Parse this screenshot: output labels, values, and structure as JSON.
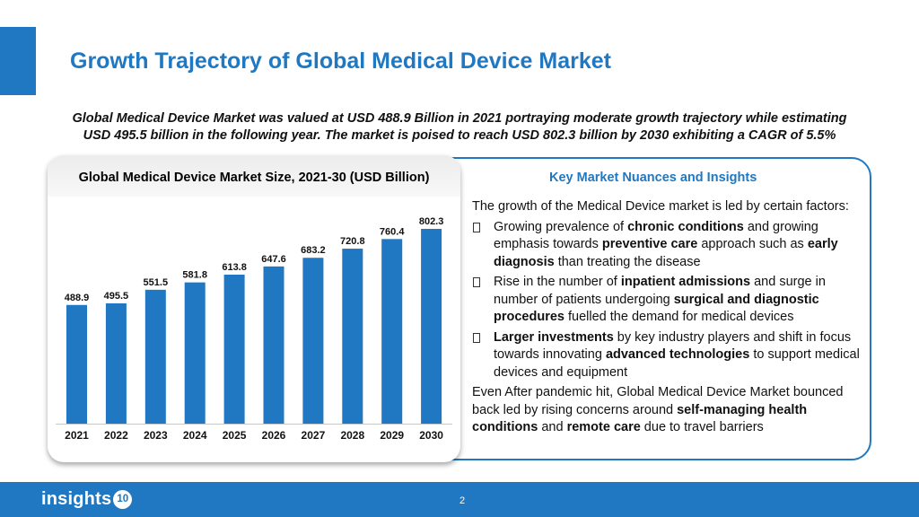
{
  "slide": {
    "title": "Growth Trajectory of Global Medical Device Market",
    "subtitle_line1": "Global Medical Device Market was valued at USD 488.9 Billion in 2021 portraying moderate growth trajectory while estimating",
    "subtitle_line2": "USD 495.5 billion in the following year. The market is poised to reach USD 802.3 billion by 2030 exhibiting a CAGR of 5.5%",
    "page_number": "2",
    "accent_color": "#1f78c1"
  },
  "chart_data": {
    "type": "bar",
    "title": "Global Medical Device Market Size, 2021-30 (USD Billion)",
    "categories": [
      "2021",
      "2022",
      "2023",
      "2024",
      "2025",
      "2026",
      "2027",
      "2028",
      "2029",
      "2030"
    ],
    "values": [
      488.9,
      495.5,
      551.5,
      581.8,
      613.8,
      647.6,
      683.2,
      720.8,
      760.4,
      802.3
    ],
    "value_labels": [
      "488.9",
      "495.5",
      "551.5",
      "581.8",
      "613.8",
      "647.6",
      "683.2",
      "720.8",
      "760.4",
      "802.3"
    ],
    "bar_color": "#1f78c1",
    "xlabel": "",
    "ylabel": "",
    "ylim": [
      0,
      802.3
    ],
    "grid": false,
    "legend": "none"
  },
  "insights": {
    "heading": "Key Market Nuances and Insights",
    "intro": "The growth of the Medical Device market is led by certain factors:",
    "bullets": [
      {
        "icon": "square-bullet-icon",
        "parts": [
          {
            "t": "Growing prevalence of ",
            "b": false
          },
          {
            "t": "chronic conditions",
            "b": true
          },
          {
            "t": " and growing emphasis towards ",
            "b": false
          },
          {
            "t": "preventive care",
            "b": true
          },
          {
            "t": " approach such as ",
            "b": false
          },
          {
            "t": "early diagnosis",
            "b": true
          },
          {
            "t": " than treating the disease",
            "b": false
          }
        ]
      },
      {
        "icon": "square-bullet-icon",
        "parts": [
          {
            "t": "Rise in the number of ",
            "b": false
          },
          {
            "t": "inpatient admissions",
            "b": true
          },
          {
            "t": " and surge in number of patients undergoing ",
            "b": false
          },
          {
            "t": "surgical and diagnostic procedures",
            "b": true
          },
          {
            "t": " fuelled the demand for medical devices",
            "b": false
          }
        ]
      },
      {
        "icon": "square-bullet-icon",
        "parts": [
          {
            "t": "Larger investments",
            "b": true
          },
          {
            "t": " by key industry players and shift in focus towards innovating ",
            "b": false
          },
          {
            "t": "advanced technologies",
            "b": true
          },
          {
            "t": " to support medical devices and equipment",
            "b": false
          }
        ]
      }
    ],
    "outro": [
      {
        "t": "Even After pandemic hit, Global Medical Device Market bounced back led by rising concerns around ",
        "b": false
      },
      {
        "t": "self-managing health conditions",
        "b": true
      },
      {
        "t": " and ",
        "b": false
      },
      {
        "t": "remote care",
        "b": true
      },
      {
        "t": " due to travel barriers",
        "b": false
      }
    ]
  },
  "footer": {
    "logo_text": "insights",
    "logo_badge": "10"
  }
}
